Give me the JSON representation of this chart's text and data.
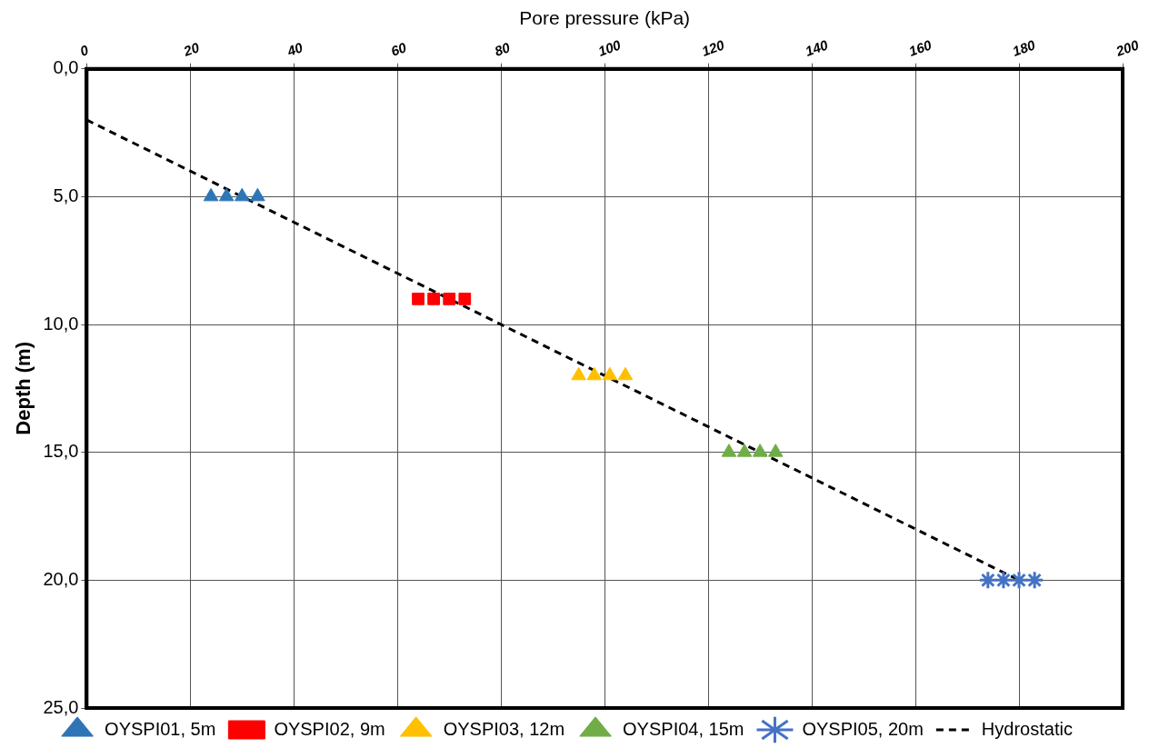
{
  "chart_data": {
    "type": "scatter",
    "xlabel": "Pore pressure (kPa)",
    "ylabel": "Depth (m)",
    "xlim": [
      0,
      200
    ],
    "xticks": [
      0,
      20,
      40,
      60,
      80,
      100,
      120,
      140,
      160,
      180,
      200
    ],
    "ylim": [
      25,
      0
    ],
    "yticks": [
      {
        "value": 0,
        "label": "0,0"
      },
      {
        "value": 5,
        "label": "5,0"
      },
      {
        "value": 10,
        "label": "10,0"
      },
      {
        "value": 15,
        "label": "15,0"
      },
      {
        "value": 20,
        "label": "20,0"
      },
      {
        "value": 25,
        "label": "25,0"
      }
    ],
    "grid": true,
    "legend": "bottom",
    "series": [
      {
        "name": "OYSPI01, 5m",
        "color": "#2e75b6",
        "marker": "triangle",
        "x": [
          24,
          27,
          30,
          33
        ],
        "values": [
          5,
          5,
          5,
          5
        ]
      },
      {
        "name": "OYSPI02, 9m",
        "color": "#ff0000",
        "marker": "square",
        "x": [
          64,
          67,
          70,
          73
        ],
        "values": [
          9,
          9,
          9,
          9
        ]
      },
      {
        "name": "OYSPI03, 12m",
        "color": "#ffc000",
        "marker": "triangle",
        "x": [
          95,
          98,
          101,
          104
        ],
        "values": [
          12,
          12,
          12,
          12
        ]
      },
      {
        "name": "OYSPI04, 15m",
        "color": "#70ad47",
        "marker": "triangle",
        "x": [
          124,
          127,
          130,
          133
        ],
        "values": [
          15,
          15,
          15,
          15
        ]
      },
      {
        "name": "OYSPI05, 20m",
        "color": "#4472c4",
        "marker": "cross",
        "x": [
          174,
          177,
          180,
          183
        ],
        "values": [
          20,
          20,
          20,
          20
        ]
      },
      {
        "name": "Hydrostatic",
        "type": "line",
        "color": "#000000",
        "marker": "none",
        "line_style": "dashed",
        "x": [
          0,
          180
        ],
        "values": [
          2,
          20
        ]
      }
    ]
  }
}
